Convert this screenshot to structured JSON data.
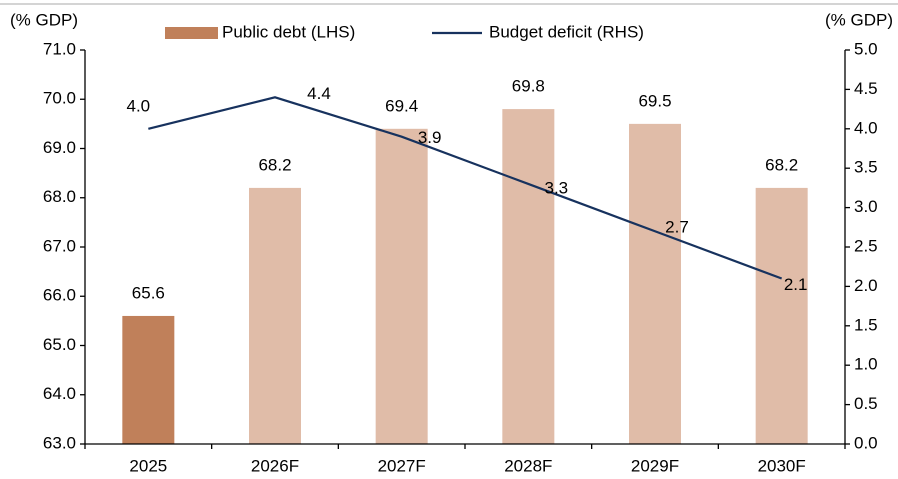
{
  "chart_data": {
    "type": "bar",
    "y_label": "(% GDP)",
    "y2_label": "(% GDP)",
    "categories": [
      "2025",
      "2026F",
      "2027F",
      "2028F",
      "2029F",
      "2030F"
    ],
    "series": [
      {
        "name": "Public debt (LHS)",
        "type": "bar",
        "color": "#e0bca8",
        "colors": [
          "#c0805a",
          "#e0bca8",
          "#e0bca8",
          "#e0bca8",
          "#e0bca8",
          "#e0bca8"
        ],
        "values": [
          65.6,
          68.2,
          69.4,
          69.8,
          69.5,
          68.2
        ]
      },
      {
        "name": "Budget deficit (RHS)",
        "type": "line",
        "axis": "y2",
        "color": "#17325e",
        "values": [
          4.0,
          4.4,
          3.9,
          3.3,
          2.7,
          2.1
        ],
        "value_labels": [
          "4.0",
          "4.4",
          "3.9",
          "3.3",
          "2.7",
          "2.1"
        ]
      }
    ],
    "ylim": [
      63,
      71
    ],
    "yticks": [
      {
        "value": 63,
        "label": "63.0"
      },
      {
        "value": 64,
        "label": "64.0"
      },
      {
        "value": 65,
        "label": "65.0"
      },
      {
        "value": 66,
        "label": "66.0"
      },
      {
        "value": 67,
        "label": "67.0"
      },
      {
        "value": 68,
        "label": "68.0"
      },
      {
        "value": 69,
        "label": "69.0"
      },
      {
        "value": 70,
        "label": "70.0"
      },
      {
        "value": 71,
        "label": "71.0"
      }
    ],
    "y2lim": [
      0,
      5
    ],
    "y2ticks": [
      {
        "value": 0,
        "label": "0.0"
      },
      {
        "value": 0.5,
        "label": "0.5"
      },
      {
        "value": 1,
        "label": "1.0"
      },
      {
        "value": 1.5,
        "label": "1.5"
      },
      {
        "value": 2,
        "label": "2.0"
      },
      {
        "value": 2.5,
        "label": "2.5"
      },
      {
        "value": 3,
        "label": "3.0"
      },
      {
        "value": 3.5,
        "label": "3.5"
      },
      {
        "value": 4,
        "label": "4.0"
      },
      {
        "value": 4.5,
        "label": "4.5"
      },
      {
        "value": 5,
        "label": "5.0"
      }
    ],
    "legend": "top"
  }
}
